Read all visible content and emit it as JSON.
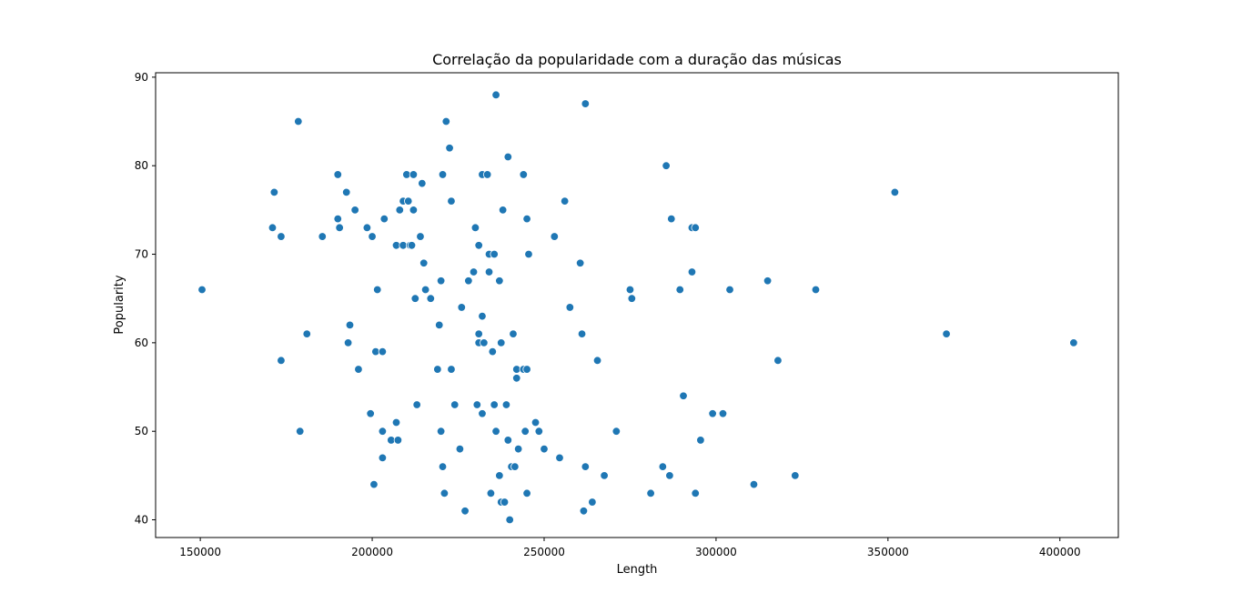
{
  "chart_data": {
    "type": "scatter",
    "title": "Correlação da popularidade com a duração das músicas",
    "xlabel": "Length",
    "ylabel": "Popularity",
    "xlim": [
      137000,
      417000
    ],
    "ylim": [
      38,
      90.5
    ],
    "grid": false,
    "legend": "none",
    "marker_color": "#1f77b4",
    "marker_edge_color": "#ffffff",
    "x_ticks": [
      {
        "value": 150000,
        "label": "150000"
      },
      {
        "value": 200000,
        "label": "200000"
      },
      {
        "value": 250000,
        "label": "250000"
      },
      {
        "value": 300000,
        "label": "300000"
      },
      {
        "value": 350000,
        "label": "350000"
      },
      {
        "value": 400000,
        "label": "400000"
      }
    ],
    "y_ticks": [
      {
        "value": 40,
        "label": "40"
      },
      {
        "value": 50,
        "label": "50"
      },
      {
        "value": 60,
        "label": "60"
      },
      {
        "value": 70,
        "label": "70"
      },
      {
        "value": 80,
        "label": "80"
      },
      {
        "value": 90,
        "label": "90"
      }
    ],
    "points": [
      [
        150500,
        66
      ],
      [
        171000,
        73
      ],
      [
        171500,
        77
      ],
      [
        173500,
        72
      ],
      [
        173500,
        58
      ],
      [
        178500,
        85
      ],
      [
        179000,
        50
      ],
      [
        181000,
        61
      ],
      [
        185500,
        72
      ],
      [
        190000,
        79
      ],
      [
        190000,
        74
      ],
      [
        190500,
        73
      ],
      [
        192500,
        77
      ],
      [
        193000,
        60
      ],
      [
        193500,
        62
      ],
      [
        195000,
        75
      ],
      [
        196000,
        57
      ],
      [
        198500,
        73
      ],
      [
        199500,
        52
      ],
      [
        200000,
        72
      ],
      [
        200500,
        44
      ],
      [
        201000,
        59
      ],
      [
        201500,
        66
      ],
      [
        203000,
        59
      ],
      [
        203000,
        50
      ],
      [
        203000,
        47
      ],
      [
        203500,
        74
      ],
      [
        205500,
        49
      ],
      [
        207000,
        71
      ],
      [
        207000,
        51
      ],
      [
        207500,
        49
      ],
      [
        208000,
        75
      ],
      [
        209000,
        76
      ],
      [
        209000,
        71
      ],
      [
        210000,
        79
      ],
      [
        210500,
        76
      ],
      [
        211000,
        71
      ],
      [
        211500,
        71
      ],
      [
        212000,
        79
      ],
      [
        212000,
        75
      ],
      [
        212500,
        65
      ],
      [
        213000,
        53
      ],
      [
        214000,
        72
      ],
      [
        214500,
        78
      ],
      [
        215000,
        69
      ],
      [
        215500,
        66
      ],
      [
        217000,
        65
      ],
      [
        219000,
        57
      ],
      [
        219500,
        62
      ],
      [
        220000,
        67
      ],
      [
        220000,
        50
      ],
      [
        220500,
        79
      ],
      [
        220500,
        46
      ],
      [
        221000,
        43
      ],
      [
        221500,
        85
      ],
      [
        222500,
        82
      ],
      [
        223000,
        76
      ],
      [
        223000,
        57
      ],
      [
        224000,
        53
      ],
      [
        225500,
        48
      ],
      [
        226000,
        64
      ],
      [
        227000,
        41
      ],
      [
        228000,
        67
      ],
      [
        229500,
        68
      ],
      [
        230000,
        73
      ],
      [
        230500,
        53
      ],
      [
        231000,
        71
      ],
      [
        231000,
        61
      ],
      [
        231000,
        60
      ],
      [
        232000,
        63
      ],
      [
        232000,
        52
      ],
      [
        232000,
        79
      ],
      [
        232500,
        60
      ],
      [
        233500,
        79
      ],
      [
        234000,
        68
      ],
      [
        234000,
        70
      ],
      [
        234500,
        43
      ],
      [
        235000,
        59
      ],
      [
        235500,
        70
      ],
      [
        235500,
        53
      ],
      [
        236000,
        88
      ],
      [
        236000,
        50
      ],
      [
        237000,
        67
      ],
      [
        237000,
        45
      ],
      [
        237500,
        60
      ],
      [
        237500,
        42
      ],
      [
        238000,
        75
      ],
      [
        238500,
        42
      ],
      [
        239000,
        53
      ],
      [
        239500,
        81
      ],
      [
        239500,
        49
      ],
      [
        240000,
        40
      ],
      [
        240500,
        46
      ],
      [
        241000,
        61
      ],
      [
        241500,
        46
      ],
      [
        242000,
        57
      ],
      [
        242000,
        56
      ],
      [
        242500,
        48
      ],
      [
        244000,
        79
      ],
      [
        244000,
        57
      ],
      [
        244500,
        50
      ],
      [
        245000,
        74
      ],
      [
        245000,
        57
      ],
      [
        245000,
        43
      ],
      [
        245500,
        70
      ],
      [
        247500,
        51
      ],
      [
        248500,
        50
      ],
      [
        250000,
        48
      ],
      [
        253000,
        72
      ],
      [
        254500,
        47
      ],
      [
        256000,
        76
      ],
      [
        257500,
        64
      ],
      [
        260500,
        69
      ],
      [
        261000,
        61
      ],
      [
        261500,
        41
      ],
      [
        262000,
        87
      ],
      [
        262000,
        46
      ],
      [
        264000,
        42
      ],
      [
        265500,
        58
      ],
      [
        267500,
        45
      ],
      [
        271000,
        50
      ],
      [
        275000,
        66
      ],
      [
        275500,
        65
      ],
      [
        281000,
        43
      ],
      [
        284500,
        46
      ],
      [
        285500,
        80
      ],
      [
        286500,
        45
      ],
      [
        287000,
        74
      ],
      [
        289500,
        66
      ],
      [
        290500,
        54
      ],
      [
        293000,
        68
      ],
      [
        293000,
        73
      ],
      [
        294000,
        73
      ],
      [
        294000,
        43
      ],
      [
        295500,
        49
      ],
      [
        299000,
        52
      ],
      [
        302000,
        52
      ],
      [
        304000,
        66
      ],
      [
        311000,
        44
      ],
      [
        315000,
        67
      ],
      [
        318000,
        58
      ],
      [
        323000,
        45
      ],
      [
        329000,
        66
      ],
      [
        352000,
        77
      ],
      [
        367000,
        61
      ],
      [
        404000,
        60
      ]
    ]
  }
}
